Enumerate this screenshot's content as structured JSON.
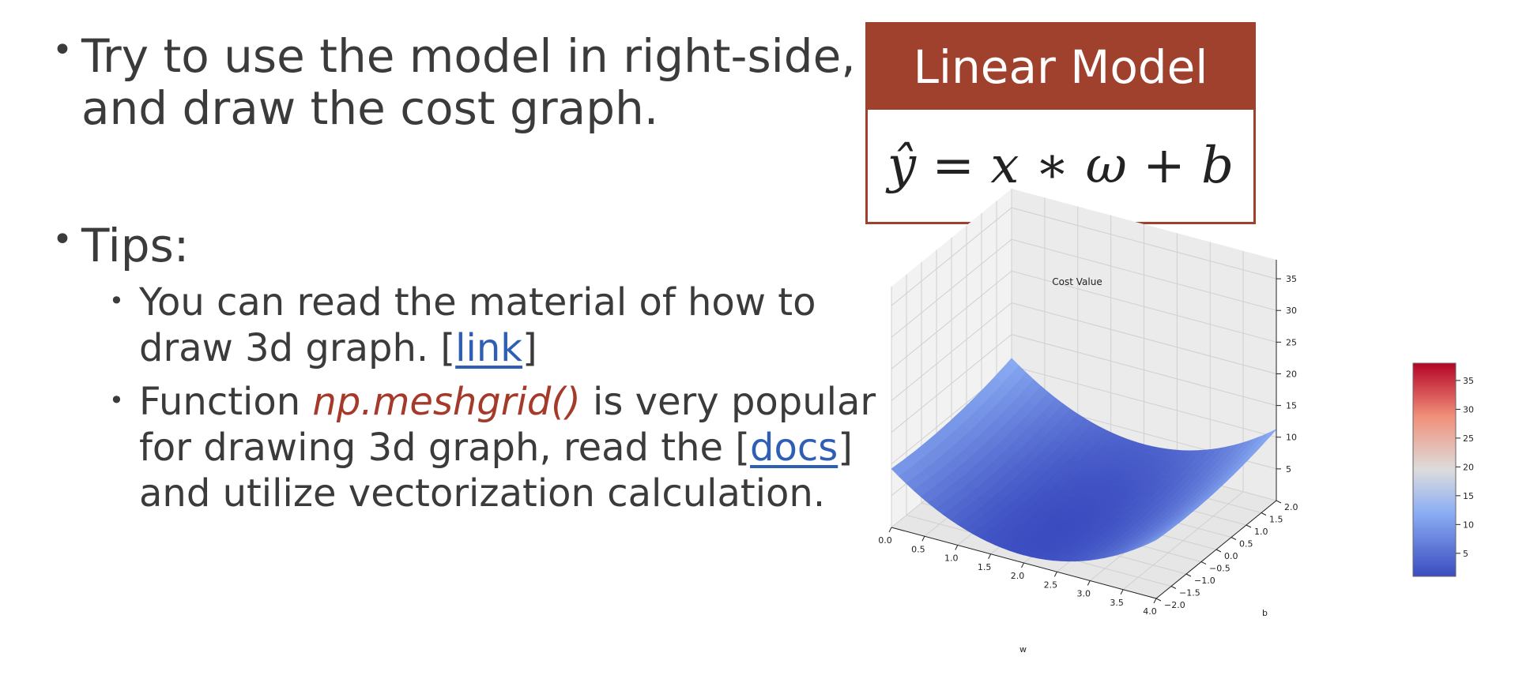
{
  "bullets": [
    {
      "lines": [
        "Try to use the model in right-side,",
        "and draw the cost graph."
      ]
    },
    {
      "lines": [
        "Tips:"
      ]
    }
  ],
  "tips": [
    {
      "line1": "You can read the material of how to",
      "line2_prefix": "draw 3d graph. [",
      "link": "link",
      "line2_suffix": "]"
    },
    {
      "l1_prefix": "Function ",
      "fn": "np.meshgrid()",
      "l1_suffix": " is very popular",
      "l2_prefix": "for drawing 3d graph, read the [",
      "link": "docs",
      "l2_suffix": "]",
      "l3": "and utilize vectorization calculation."
    }
  ],
  "model": {
    "title": "Linear Model",
    "formula": "ŷ = x ∗ ω + b"
  },
  "colors": {
    "accent": "#a0412e",
    "link": "#2f5fb5",
    "text": "#3b3b3b"
  },
  "chart_data": {
    "type": "surface3d",
    "title": "Cost Value",
    "xlabel": "w",
    "ylabel": "b",
    "x_ticks": [
      "0.0",
      "0.5",
      "1.0",
      "1.5",
      "2.0",
      "2.5",
      "3.0",
      "3.5",
      "4.0"
    ],
    "y_ticks": [
      "−2.0",
      "−1.5",
      "−1.0",
      "−0.5",
      "0.0",
      "0.5",
      "1.0",
      "1.5",
      "2.0"
    ],
    "z_ticks": [
      "5",
      "10",
      "15",
      "20",
      "25",
      "30",
      "35"
    ],
    "colorbar_ticks": [
      "5",
      "10",
      "15",
      "20",
      "25",
      "30",
      "35"
    ],
    "xlim": [
      0,
      4
    ],
    "ylim": [
      -2,
      2
    ],
    "zlim": [
      0,
      38
    ],
    "colormap": "coolwarm"
  }
}
